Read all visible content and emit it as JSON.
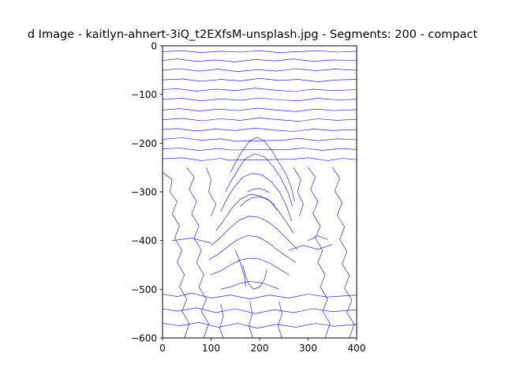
{
  "chart_data": {
    "type": "line",
    "title": "d Image - kaitlyn-ahnert-3iQ_t2EXfsM-unsplash.jpg - Segments: 200 - compact",
    "xlabel": "",
    "ylabel": "",
    "xlim": [
      0,
      400
    ],
    "ylim": [
      -600,
      0
    ],
    "x_ticks": [
      0,
      100,
      200,
      300,
      400
    ],
    "y_ticks": [
      0,
      -100,
      -200,
      -300,
      -400,
      -500,
      -600
    ],
    "x_tick_labels": [
      "0",
      "100",
      "200",
      "300",
      "400"
    ],
    "y_tick_labels": [
      "0",
      "−100",
      "−200",
      "−300",
      "−400",
      "−500",
      "−600"
    ],
    "grid": false,
    "legend": "none",
    "line_color": "#0000ff",
    "description_of_marks": "dense blue segment boundary contours",
    "contours": [
      [
        [
          0,
          -12
        ],
        [
          40,
          -10
        ],
        [
          80,
          -14
        ],
        [
          120,
          -11
        ],
        [
          160,
          -13
        ],
        [
          200,
          -10
        ],
        [
          240,
          -14
        ],
        [
          280,
          -12
        ],
        [
          320,
          -10
        ],
        [
          360,
          -13
        ],
        [
          400,
          -11
        ]
      ],
      [
        [
          0,
          -30
        ],
        [
          30,
          -27
        ],
        [
          70,
          -32
        ],
        [
          110,
          -29
        ],
        [
          150,
          -33
        ],
        [
          190,
          -28
        ],
        [
          230,
          -31
        ],
        [
          270,
          -27
        ],
        [
          310,
          -32
        ],
        [
          350,
          -29
        ],
        [
          400,
          -30
        ]
      ],
      [
        [
          0,
          -50
        ],
        [
          35,
          -47
        ],
        [
          75,
          -52
        ],
        [
          115,
          -48
        ],
        [
          155,
          -53
        ],
        [
          195,
          -49
        ],
        [
          235,
          -52
        ],
        [
          275,
          -47
        ],
        [
          315,
          -51
        ],
        [
          355,
          -48
        ],
        [
          400,
          -50
        ]
      ],
      [
        [
          0,
          -70
        ],
        [
          40,
          -68
        ],
        [
          80,
          -73
        ],
        [
          120,
          -69
        ],
        [
          160,
          -72
        ],
        [
          200,
          -67
        ],
        [
          240,
          -71
        ],
        [
          280,
          -69
        ],
        [
          320,
          -74
        ],
        [
          360,
          -70
        ],
        [
          400,
          -69
        ]
      ],
      [
        [
          0,
          -90
        ],
        [
          30,
          -88
        ],
        [
          70,
          -93
        ],
        [
          110,
          -89
        ],
        [
          150,
          -92
        ],
        [
          190,
          -87
        ],
        [
          230,
          -91
        ],
        [
          270,
          -94
        ],
        [
          310,
          -89
        ],
        [
          350,
          -92
        ],
        [
          400,
          -90
        ]
      ],
      [
        [
          0,
          -110
        ],
        [
          40,
          -108
        ],
        [
          80,
          -113
        ],
        [
          120,
          -109
        ],
        [
          160,
          -112
        ],
        [
          200,
          -107
        ],
        [
          240,
          -111
        ],
        [
          280,
          -113
        ],
        [
          320,
          -108
        ],
        [
          360,
          -111
        ],
        [
          400,
          -110
        ]
      ],
      [
        [
          0,
          -132
        ],
        [
          35,
          -129
        ],
        [
          75,
          -134
        ],
        [
          115,
          -130
        ],
        [
          155,
          -133
        ],
        [
          195,
          -128
        ],
        [
          235,
          -132
        ],
        [
          275,
          -135
        ],
        [
          315,
          -130
        ],
        [
          355,
          -133
        ],
        [
          400,
          -131
        ]
      ],
      [
        [
          0,
          -152
        ],
        [
          40,
          -149
        ],
        [
          80,
          -154
        ],
        [
          120,
          -150
        ],
        [
          160,
          -153
        ],
        [
          200,
          -148
        ],
        [
          240,
          -152
        ],
        [
          280,
          -155
        ],
        [
          320,
          -150
        ],
        [
          360,
          -153
        ],
        [
          400,
          -151
        ]
      ],
      [
        [
          0,
          -172
        ],
        [
          30,
          -170
        ],
        [
          70,
          -175
        ],
        [
          110,
          -171
        ],
        [
          150,
          -174
        ],
        [
          190,
          -169
        ],
        [
          230,
          -173
        ],
        [
          270,
          -176
        ],
        [
          310,
          -171
        ],
        [
          350,
          -174
        ],
        [
          400,
          -172
        ]
      ],
      [
        [
          0,
          -192
        ],
        [
          40,
          -189
        ],
        [
          80,
          -194
        ],
        [
          120,
          -191
        ],
        [
          150,
          -196
        ],
        [
          250,
          -194
        ],
        [
          280,
          -190
        ],
        [
          320,
          -195
        ],
        [
          360,
          -191
        ],
        [
          400,
          -193
        ]
      ],
      [
        [
          0,
          -212
        ],
        [
          35,
          -210
        ],
        [
          75,
          -215
        ],
        [
          115,
          -211
        ],
        [
          140,
          -214
        ],
        [
          260,
          -213
        ],
        [
          290,
          -210
        ],
        [
          330,
          -215
        ],
        [
          365,
          -211
        ],
        [
          400,
          -213
        ]
      ],
      [
        [
          0,
          -232
        ],
        [
          40,
          -230
        ],
        [
          80,
          -236
        ],
        [
          120,
          -231
        ],
        [
          135,
          -235
        ],
        [
          265,
          -233
        ],
        [
          300,
          -230
        ],
        [
          340,
          -236
        ],
        [
          370,
          -231
        ],
        [
          400,
          -234
        ]
      ],
      [
        [
          140,
          -260
        ],
        [
          150,
          -240
        ],
        [
          165,
          -215
        ],
        [
          180,
          -195
        ],
        [
          195,
          -188
        ],
        [
          210,
          -196
        ],
        [
          225,
          -215
        ],
        [
          240,
          -240
        ],
        [
          255,
          -265
        ],
        [
          265,
          -290
        ],
        [
          272,
          -320
        ]
      ],
      [
        [
          130,
          -300
        ],
        [
          140,
          -280
        ],
        [
          155,
          -255
        ],
        [
          170,
          -232
        ],
        [
          190,
          -222
        ],
        [
          210,
          -228
        ],
        [
          228,
          -248
        ],
        [
          244,
          -272
        ],
        [
          258,
          -300
        ],
        [
          268,
          -330
        ]
      ],
      [
        [
          120,
          -340
        ],
        [
          132,
          -315
        ],
        [
          148,
          -290
        ],
        [
          165,
          -270
        ],
        [
          185,
          -262
        ],
        [
          205,
          -265
        ],
        [
          225,
          -280
        ],
        [
          242,
          -302
        ],
        [
          256,
          -330
        ],
        [
          266,
          -360
        ]
      ],
      [
        [
          110,
          -380
        ],
        [
          125,
          -360
        ],
        [
          142,
          -335
        ],
        [
          160,
          -315
        ],
        [
          180,
          -305
        ],
        [
          200,
          -308
        ],
        [
          220,
          -318
        ],
        [
          238,
          -338
        ],
        [
          255,
          -362
        ],
        [
          270,
          -385
        ]
      ],
      [
        [
          100,
          -410
        ],
        [
          118,
          -395
        ],
        [
          138,
          -375
        ],
        [
          158,
          -358
        ],
        [
          178,
          -350
        ],
        [
          198,
          -352
        ],
        [
          218,
          -362
        ],
        [
          238,
          -378
        ],
        [
          258,
          -398
        ],
        [
          278,
          -418
        ]
      ],
      [
        [
          95,
          -440
        ],
        [
          115,
          -428
        ],
        [
          135,
          -412
        ],
        [
          155,
          -398
        ],
        [
          175,
          -390
        ],
        [
          195,
          -392
        ],
        [
          215,
          -402
        ],
        [
          235,
          -418
        ],
        [
          255,
          -432
        ],
        [
          275,
          -445
        ]
      ],
      [
        [
          100,
          -470
        ],
        [
          120,
          -462
        ],
        [
          140,
          -450
        ],
        [
          160,
          -440
        ],
        [
          180,
          -436
        ],
        [
          200,
          -438
        ],
        [
          220,
          -446
        ],
        [
          240,
          -458
        ],
        [
          260,
          -470
        ]
      ],
      [
        [
          120,
          -500
        ],
        [
          140,
          -495
        ],
        [
          160,
          -488
        ],
        [
          180,
          -484
        ],
        [
          200,
          -486
        ],
        [
          220,
          -492
        ],
        [
          240,
          -500
        ]
      ],
      [
        [
          160,
          -330
        ],
        [
          170,
          -320
        ],
        [
          185,
          -312
        ],
        [
          200,
          -310
        ],
        [
          215,
          -314
        ],
        [
          228,
          -324
        ],
        [
          236,
          -338
        ]
      ],
      [
        [
          175,
          -300
        ],
        [
          185,
          -295
        ],
        [
          198,
          -293
        ],
        [
          210,
          -296
        ],
        [
          220,
          -302
        ]
      ],
      [
        [
          165,
          -450
        ],
        [
          170,
          -470
        ],
        [
          178,
          -490
        ],
        [
          188,
          -500
        ],
        [
          200,
          -495
        ],
        [
          210,
          -480
        ],
        [
          215,
          -460
        ]
      ],
      [
        [
          150,
          -420
        ],
        [
          160,
          -445
        ],
        [
          168,
          -470
        ],
        [
          172,
          -495
        ]
      ],
      [
        [
          0,
          -260
        ],
        [
          20,
          -275
        ],
        [
          15,
          -300
        ],
        [
          30,
          -320
        ],
        [
          20,
          -345
        ],
        [
          35,
          -370
        ],
        [
          25,
          -395
        ],
        [
          40,
          -420
        ],
        [
          30,
          -445
        ],
        [
          45,
          -470
        ],
        [
          35,
          -495
        ],
        [
          50,
          -520
        ],
        [
          40,
          -545
        ],
        [
          55,
          -570
        ],
        [
          45,
          -600
        ]
      ],
      [
        [
          50,
          -250
        ],
        [
          65,
          -270
        ],
        [
          55,
          -295
        ],
        [
          70,
          -320
        ],
        [
          60,
          -345
        ],
        [
          75,
          -370
        ],
        [
          65,
          -395
        ],
        [
          80,
          -420
        ],
        [
          70,
          -445
        ],
        [
          85,
          -470
        ],
        [
          75,
          -495
        ],
        [
          90,
          -520
        ],
        [
          80,
          -545
        ],
        [
          95,
          -570
        ],
        [
          85,
          -600
        ]
      ],
      [
        [
          90,
          -250
        ],
        [
          100,
          -275
        ],
        [
          95,
          -300
        ],
        [
          110,
          -325
        ],
        [
          100,
          -350
        ]
      ],
      [
        [
          300,
          -250
        ],
        [
          315,
          -270
        ],
        [
          305,
          -295
        ],
        [
          320,
          -320
        ],
        [
          310,
          -345
        ],
        [
          325,
          -370
        ],
        [
          315,
          -395
        ],
        [
          330,
          -420
        ],
        [
          320,
          -445
        ],
        [
          335,
          -470
        ],
        [
          325,
          -495
        ],
        [
          340,
          -520
        ],
        [
          330,
          -545
        ],
        [
          345,
          -570
        ],
        [
          335,
          -600
        ]
      ],
      [
        [
          350,
          -250
        ],
        [
          365,
          -272
        ],
        [
          355,
          -298
        ],
        [
          370,
          -322
        ],
        [
          360,
          -348
        ],
        [
          375,
          -372
        ],
        [
          365,
          -398
        ],
        [
          380,
          -422
        ],
        [
          370,
          -448
        ],
        [
          385,
          -472
        ],
        [
          375,
          -498
        ],
        [
          390,
          -522
        ],
        [
          380,
          -548
        ],
        [
          395,
          -572
        ],
        [
          385,
          -600
        ]
      ],
      [
        [
          270,
          -250
        ],
        [
          285,
          -275
        ],
        [
          278,
          -300
        ],
        [
          290,
          -325
        ],
        [
          282,
          -350
        ]
      ],
      [
        [
          0,
          -510
        ],
        [
          30,
          -515
        ],
        [
          60,
          -508
        ],
        [
          100,
          -518
        ],
        [
          140,
          -512
        ],
        [
          180,
          -520
        ],
        [
          220,
          -512
        ],
        [
          260,
          -518
        ],
        [
          300,
          -510
        ],
        [
          340,
          -516
        ],
        [
          400,
          -512
        ]
      ],
      [
        [
          0,
          -540
        ],
        [
          30,
          -545
        ],
        [
          70,
          -538
        ],
        [
          110,
          -548
        ],
        [
          150,
          -540
        ],
        [
          190,
          -550
        ],
        [
          230,
          -542
        ],
        [
          270,
          -548
        ],
        [
          310,
          -540
        ],
        [
          350,
          -546
        ],
        [
          400,
          -542
        ]
      ],
      [
        [
          0,
          -570
        ],
        [
          35,
          -575
        ],
        [
          75,
          -568
        ],
        [
          115,
          -578
        ],
        [
          155,
          -570
        ],
        [
          195,
          -580
        ],
        [
          235,
          -572
        ],
        [
          275,
          -578
        ],
        [
          315,
          -570
        ],
        [
          355,
          -576
        ],
        [
          400,
          -572
        ]
      ],
      [
        [
          120,
          -530
        ],
        [
          125,
          -555
        ],
        [
          118,
          -580
        ],
        [
          125,
          -600
        ]
      ],
      [
        [
          180,
          -525
        ],
        [
          185,
          -550
        ],
        [
          178,
          -575
        ],
        [
          186,
          -600
        ]
      ],
      [
        [
          240,
          -525
        ],
        [
          246,
          -550
        ],
        [
          238,
          -575
        ],
        [
          246,
          -600
        ]
      ],
      [
        [
          20,
          -400
        ],
        [
          60,
          -395
        ],
        [
          100,
          -405
        ]
      ],
      [
        [
          300,
          -400
        ],
        [
          320,
          -390
        ],
        [
          340,
          -398
        ]
      ],
      [
        [
          260,
          -420
        ],
        [
          290,
          -410
        ],
        [
          320,
          -418
        ],
        [
          350,
          -408
        ]
      ]
    ]
  }
}
